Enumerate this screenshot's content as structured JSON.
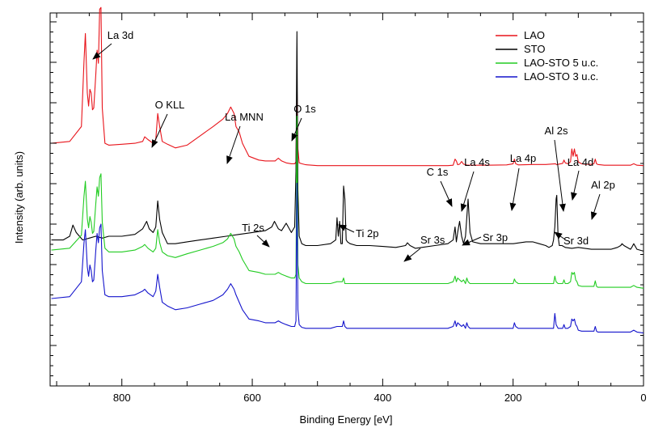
{
  "chart_data": {
    "type": "line",
    "title": "",
    "xlabel": "Binding Energy [eV]",
    "ylabel": "Intensity (arb. units)",
    "xlim": [
      910,
      0
    ],
    "x_reversed": true,
    "y_ticks_labeled": false,
    "xticks": [
      800,
      600,
      400,
      200,
      0
    ],
    "xtick_labels": [
      "800",
      "600",
      "400",
      "200",
      "0"
    ],
    "legend": {
      "placement": "top-right"
    },
    "series": [
      {
        "name": "LAO",
        "color": "#e8141b",
        "offset": 270,
        "x": [
          908,
          880,
          862,
          858,
          856,
          853,
          851,
          849,
          847,
          845,
          843,
          840,
          838,
          836,
          834,
          832,
          830,
          826,
          820,
          800,
          780,
          768,
          765,
          760,
          752,
          748,
          745,
          742,
          738,
          730,
          718,
          700,
          680,
          660,
          645,
          638,
          633,
          628,
          625,
          620,
          615,
          605,
          590,
          580,
          565,
          560,
          555,
          548,
          540,
          535,
          533,
          531.5,
          530,
          528,
          524,
          518,
          500,
          480,
          460,
          440,
          420,
          400,
          380,
          360,
          340,
          320,
          300,
          292,
          289,
          287,
          285,
          282,
          279,
          276,
          270,
          240,
          210,
          200,
          198,
          196,
          192,
          170,
          150,
          135,
          133,
          130,
          124,
          122,
          120,
          116,
          112,
          110,
          108,
          106,
          104,
          102,
          100,
          95,
          90,
          80,
          76,
          74,
          72,
          70,
          60,
          40,
          20,
          15,
          10,
          0
        ],
        "y": [
          0.13,
          0.14,
          0.22,
          0.57,
          0.72,
          0.4,
          0.33,
          0.42,
          0.4,
          0.31,
          0.32,
          0.5,
          0.63,
          0.56,
          0.85,
          0.86,
          0.32,
          0.13,
          0.12,
          0.125,
          0.13,
          0.14,
          0.165,
          0.15,
          0.13,
          0.15,
          0.29,
          0.22,
          0.14,
          0.125,
          0.105,
          0.12,
          0.17,
          0.22,
          0.26,
          0.29,
          0.325,
          0.29,
          0.22,
          0.19,
          0.13,
          0.06,
          0.04,
          0.035,
          0.035,
          0.05,
          0.035,
          0.025,
          0.02,
          0.02,
          0.03,
          0.45,
          0.1,
          0.025,
          0.02,
          0.015,
          0.01,
          0.01,
          0.01,
          0.01,
          0.01,
          0.01,
          0.01,
          0.01,
          0.01,
          0.01,
          0.01,
          0.012,
          0.045,
          0.035,
          0.015,
          0.018,
          0.032,
          0.018,
          0.012,
          0.012,
          0.014,
          0.02,
          0.045,
          0.02,
          0.014,
          0.016,
          0.016,
          0.02,
          0.015,
          0.018,
          0.022,
          0.04,
          0.025,
          0.02,
          0.03,
          0.1,
          0.06,
          0.1,
          0.06,
          0.07,
          0.03,
          0.02,
          0.018,
          0.017,
          0.02,
          0.045,
          0.02,
          0.016,
          0.012,
          0.012,
          0.012,
          0.02,
          0.012,
          0.01
        ]
      },
      {
        "name": "STO",
        "color": "#000000",
        "offset": 162,
        "x": [
          908,
          890,
          880,
          875,
          870,
          860,
          850,
          840,
          830,
          820,
          800,
          780,
          768,
          762,
          758,
          752,
          748,
          745,
          742,
          738,
          730,
          718,
          700,
          680,
          660,
          640,
          620,
          600,
          580,
          570,
          566,
          560,
          555,
          548,
          540,
          535,
          533,
          531.5,
          530,
          528,
          524,
          518,
          500,
          480,
          472,
          470,
          468,
          466,
          464,
          462,
          460,
          458,
          456,
          454,
          450,
          440,
          420,
          400,
          380,
          365,
          362,
          358,
          350,
          340,
          320,
          300,
          292,
          289,
          287,
          285,
          282,
          279,
          276,
          273,
          271,
          269,
          266,
          262,
          250,
          230,
          210,
          200,
          190,
          180,
          170,
          160,
          150,
          145,
          140,
          138,
          136,
          134,
          133,
          131,
          129,
          125,
          120,
          110,
          100,
          90,
          80,
          70,
          60,
          50,
          40,
          35,
          33,
          30,
          20,
          18,
          15,
          10,
          0
        ],
        "y": [
          0.08,
          0.08,
          0.1,
          0.16,
          0.12,
          0.08,
          0.09,
          0.1,
          0.09,
          0.1,
          0.1,
          0.11,
          0.14,
          0.18,
          0.14,
          0.12,
          0.15,
          0.29,
          0.19,
          0.12,
          0.06,
          0.06,
          0.07,
          0.08,
          0.09,
          0.1,
          0.11,
          0.12,
          0.13,
          0.15,
          0.18,
          0.14,
          0.13,
          0.17,
          0.12,
          0.15,
          0.45,
          1.2,
          0.35,
          0.1,
          0.06,
          0.05,
          0.05,
          0.06,
          0.08,
          0.2,
          0.1,
          0.18,
          0.06,
          0.06,
          0.37,
          0.3,
          0.08,
          0.07,
          0.06,
          0.05,
          0.05,
          0.045,
          0.04,
          0.05,
          0.065,
          0.05,
          0.035,
          0.04,
          0.05,
          0.06,
          0.08,
          0.15,
          0.07,
          0.12,
          0.18,
          0.1,
          0.06,
          0.1,
          0.2,
          0.3,
          0.12,
          0.07,
          0.06,
          0.06,
          0.06,
          0.06,
          0.065,
          0.07,
          0.07,
          0.06,
          0.05,
          0.04,
          0.05,
          0.08,
          0.15,
          0.3,
          0.32,
          0.1,
          0.05,
          0.05,
          0.04,
          0.035,
          0.04,
          0.035,
          0.03,
          0.03,
          0.03,
          0.03,
          0.04,
          0.05,
          0.06,
          0.05,
          0.03,
          0.04,
          0.06,
          0.03,
          0.02
        ]
      },
      {
        "name": "LAO-STO 5 u.c.",
        "color": "#22cc22",
        "offset": 115,
        "x": [
          908,
          880,
          862,
          858,
          856,
          853,
          851,
          849,
          847,
          845,
          843,
          840,
          838,
          836,
          834,
          832,
          830,
          826,
          820,
          800,
          780,
          768,
          765,
          760,
          752,
          748,
          745,
          742,
          738,
          730,
          718,
          700,
          680,
          660,
          645,
          638,
          633,
          628,
          625,
          620,
          615,
          605,
          590,
          580,
          565,
          560,
          555,
          548,
          540,
          535,
          533,
          531.5,
          530,
          528,
          524,
          518,
          500,
          480,
          470,
          462,
          460,
          458,
          455,
          440,
          420,
          400,
          380,
          360,
          340,
          320,
          300,
          292,
          289,
          287,
          285,
          282,
          279,
          276,
          273,
          271,
          269,
          266,
          262,
          240,
          210,
          200,
          198,
          196,
          192,
          170,
          150,
          138,
          136,
          134,
          131,
          128,
          124,
          122,
          120,
          116,
          112,
          110,
          108,
          106,
          104,
          102,
          100,
          95,
          90,
          80,
          76,
          74,
          72,
          70,
          60,
          40,
          20,
          15,
          10,
          0
        ],
        "y": [
          0.23,
          0.24,
          0.31,
          0.52,
          0.6,
          0.4,
          0.35,
          0.41,
          0.38,
          0.32,
          0.33,
          0.48,
          0.57,
          0.52,
          0.62,
          0.64,
          0.38,
          0.24,
          0.22,
          0.22,
          0.23,
          0.25,
          0.26,
          0.24,
          0.22,
          0.24,
          0.34,
          0.27,
          0.22,
          0.2,
          0.19,
          0.21,
          0.23,
          0.25,
          0.27,
          0.29,
          0.32,
          0.29,
          0.25,
          0.22,
          0.18,
          0.12,
          0.11,
          0.1,
          0.1,
          0.11,
          0.1,
          0.09,
          0.08,
          0.08,
          0.1,
          0.95,
          0.15,
          0.08,
          0.06,
          0.05,
          0.05,
          0.05,
          0.06,
          0.06,
          0.08,
          0.05,
          0.05,
          0.05,
          0.05,
          0.05,
          0.05,
          0.05,
          0.05,
          0.05,
          0.05,
          0.06,
          0.09,
          0.06,
          0.08,
          0.07,
          0.06,
          0.07,
          0.05,
          0.08,
          0.06,
          0.05,
          0.05,
          0.05,
          0.05,
          0.05,
          0.075,
          0.06,
          0.05,
          0.05,
          0.05,
          0.05,
          0.09,
          0.06,
          0.05,
          0.05,
          0.05,
          0.07,
          0.05,
          0.05,
          0.06,
          0.11,
          0.1,
          0.11,
          0.07,
          0.06,
          0.04,
          0.035,
          0.035,
          0.035,
          0.035,
          0.065,
          0.035,
          0.03,
          0.03,
          0.03,
          0.03,
          0.04,
          0.03,
          0.025
        ]
      },
      {
        "name": "LAO-STO 3 u.c.",
        "color": "#1414cc",
        "offset": 62,
        "x": [
          908,
          880,
          862,
          858,
          856,
          853,
          851,
          849,
          847,
          845,
          843,
          840,
          838,
          836,
          834,
          832,
          830,
          826,
          820,
          800,
          780,
          768,
          765,
          760,
          752,
          748,
          745,
          742,
          738,
          730,
          718,
          700,
          680,
          660,
          645,
          638,
          633,
          628,
          625,
          620,
          615,
          605,
          590,
          580,
          565,
          560,
          555,
          548,
          540,
          535,
          533,
          531.5,
          530,
          528,
          524,
          518,
          500,
          480,
          470,
          462,
          460,
          458,
          455,
          440,
          420,
          400,
          380,
          360,
          340,
          320,
          300,
          292,
          289,
          287,
          285,
          282,
          279,
          276,
          273,
          271,
          269,
          266,
          262,
          240,
          210,
          200,
          198,
          196,
          192,
          170,
          150,
          138,
          136,
          134,
          131,
          128,
          124,
          122,
          120,
          116,
          112,
          110,
          108,
          106,
          104,
          102,
          100,
          95,
          90,
          80,
          76,
          74,
          72,
          70,
          60,
          40,
          20,
          15,
          10,
          0
        ],
        "y": [
          0.2,
          0.21,
          0.29,
          0.5,
          0.57,
          0.37,
          0.32,
          0.38,
          0.35,
          0.29,
          0.3,
          0.46,
          0.55,
          0.5,
          0.58,
          0.6,
          0.35,
          0.22,
          0.21,
          0.21,
          0.22,
          0.24,
          0.25,
          0.23,
          0.21,
          0.24,
          0.33,
          0.26,
          0.18,
          0.16,
          0.14,
          0.15,
          0.17,
          0.19,
          0.22,
          0.25,
          0.28,
          0.25,
          0.22,
          0.18,
          0.14,
          0.09,
          0.08,
          0.07,
          0.07,
          0.08,
          0.07,
          0.06,
          0.05,
          0.05,
          0.08,
          0.82,
          0.14,
          0.06,
          0.045,
          0.04,
          0.04,
          0.04,
          0.05,
          0.05,
          0.08,
          0.05,
          0.04,
          0.04,
          0.04,
          0.04,
          0.04,
          0.04,
          0.04,
          0.04,
          0.04,
          0.05,
          0.08,
          0.05,
          0.07,
          0.06,
          0.05,
          0.06,
          0.04,
          0.07,
          0.05,
          0.04,
          0.04,
          0.04,
          0.04,
          0.04,
          0.07,
          0.05,
          0.04,
          0.04,
          0.04,
          0.04,
          0.12,
          0.06,
          0.04,
          0.04,
          0.04,
          0.06,
          0.04,
          0.04,
          0.05,
          0.09,
          0.08,
          0.09,
          0.06,
          0.05,
          0.03,
          0.025,
          0.025,
          0.025,
          0.025,
          0.05,
          0.025,
          0.02,
          0.02,
          0.02,
          0.02,
          0.03,
          0.02,
          0.015
        ]
      }
    ],
    "annotations": [
      {
        "text": "La 3d",
        "anchor": "below"
      },
      {
        "text": "O KLL",
        "anchor": "below"
      },
      {
        "text": "La MNN",
        "anchor": "below"
      },
      {
        "text": "O 1s",
        "anchor": "below"
      },
      {
        "text": "C 1s",
        "anchor": "below"
      },
      {
        "text": "La 4s",
        "anchor": "below"
      },
      {
        "text": "La 4p",
        "anchor": "below"
      },
      {
        "text": "Al 2s",
        "anchor": "below"
      },
      {
        "text": "La 4d",
        "anchor": "below"
      },
      {
        "text": "Al 2p",
        "anchor": "below"
      },
      {
        "text": "Ti 2s",
        "anchor": "below"
      },
      {
        "text": "Ti 2p",
        "anchor": "left"
      },
      {
        "text": "Sr 3s",
        "anchor": "right"
      },
      {
        "text": "Sr 3p",
        "anchor": "left"
      },
      {
        "text": "Sr 3d",
        "anchor": "left"
      }
    ]
  }
}
